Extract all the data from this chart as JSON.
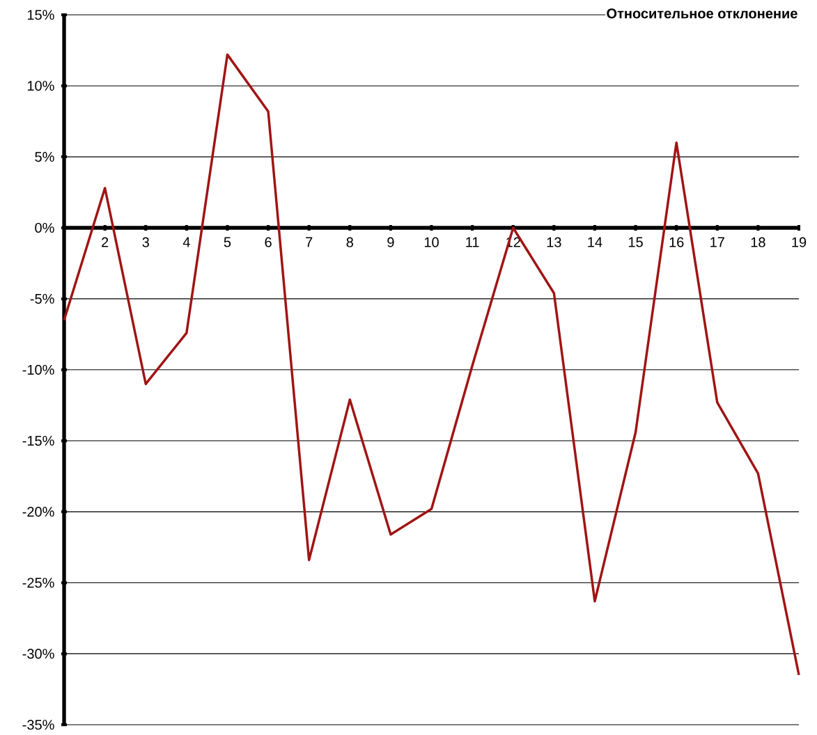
{
  "chart_data": {
    "type": "line",
    "title": "Относительное отклонение",
    "categories": [
      null,
      "2",
      "3",
      "4",
      "5",
      "6",
      "7",
      "8",
      "9",
      "10",
      "11",
      "12",
      "13",
      "14",
      "15",
      "16",
      "17",
      "18",
      "19"
    ],
    "series": [
      {
        "color": "#a01414",
        "values": [
          -6.5,
          2.8,
          -11.0,
          -7.4,
          12.2,
          8.2,
          -23.4,
          -12.1,
          -21.6,
          -19.8,
          -9.7,
          0,
          -4.6,
          -26.3,
          -14.4,
          6.0,
          -12.3,
          -17.3,
          -31.5
        ]
      }
    ],
    "ylim": [
      -35,
      15
    ],
    "yticks": [
      {
        "value": -35,
        "label": "-35%"
      },
      {
        "value": -30,
        "label": "-30%"
      },
      {
        "value": -25,
        "label": "-25%"
      },
      {
        "value": -20,
        "label": "-20%"
      },
      {
        "value": -15,
        "label": "-15%"
      },
      {
        "value": -10,
        "label": "-10%"
      },
      {
        "value": -5,
        "label": "-5%"
      },
      {
        "value": 0,
        "label": "0%"
      },
      {
        "value": 5,
        "label": "5%"
      },
      {
        "value": 10,
        "label": "10%"
      },
      {
        "value": 15,
        "label": "15%"
      }
    ],
    "grid": "y"
  }
}
